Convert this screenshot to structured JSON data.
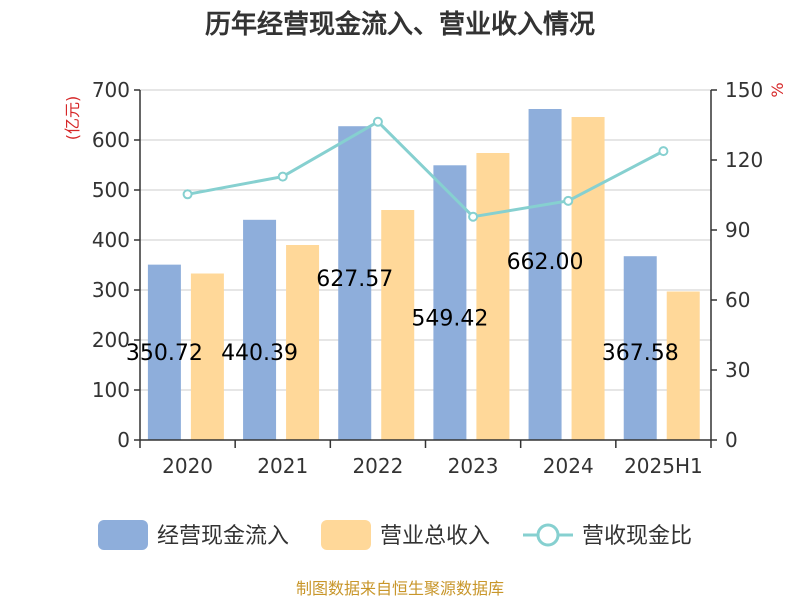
{
  "chart_data": {
    "type": "bar",
    "title": "历年经营现金流入、营业收入情况",
    "categories": [
      "2020",
      "2021",
      "2022",
      "2023",
      "2024",
      "2025H1"
    ],
    "series": [
      {
        "name": "经营现金流入",
        "kind": "bar",
        "axis": "left",
        "color": "#8eaedb",
        "values": [
          350.72,
          440.39,
          627.57,
          549.42,
          662.0,
          367.58
        ]
      },
      {
        "name": "营业总收入",
        "kind": "bar",
        "axis": "left",
        "color": "#ffd899",
        "values": [
          333,
          390,
          460,
          574,
          646,
          297
        ]
      },
      {
        "name": "营收现金比",
        "kind": "line",
        "axis": "right",
        "color": "#86d0d0",
        "values": [
          105.3,
          112.9,
          136.4,
          95.7,
          102.5,
          123.8
        ]
      }
    ],
    "data_labels": [
      "350.72",
      "440.39",
      "627.57",
      "549.42",
      "662.00",
      "367.58"
    ],
    "y_left": {
      "unit_label": "(亿元)",
      "ylim": [
        0,
        700
      ],
      "ticks": [
        "0",
        "100",
        "200",
        "300",
        "400",
        "500",
        "600",
        "700"
      ]
    },
    "y_right": {
      "unit_label": "%",
      "ylim": [
        0,
        150
      ],
      "ticks": [
        "0",
        "30",
        "60",
        "90",
        "120",
        "150"
      ]
    },
    "grid": true,
    "legend_position": "bottom"
  },
  "footer": "制图数据来自恒生聚源数据库"
}
